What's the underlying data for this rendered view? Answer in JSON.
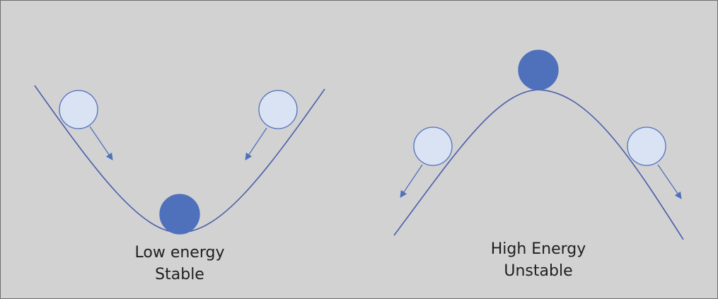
{
  "colors": {
    "background": "#d2d2d2",
    "curve": "#4a5ea8",
    "ball_stable": "#4f71bc",
    "ball_unstable": "#dae3f3",
    "ball_stroke": "#4f71bc",
    "arrow": "#4f71bc"
  },
  "stable_well": {
    "label_line1": "Low energy",
    "label_line2": "Stable"
  },
  "unstable_hill": {
    "label_line1": "High Energy",
    "label_line2": "Unstable"
  }
}
